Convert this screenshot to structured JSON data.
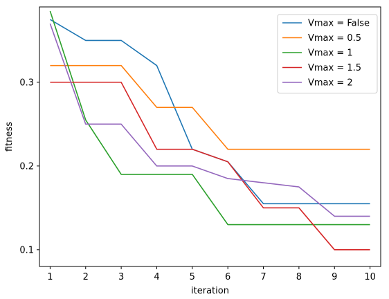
{
  "chart_data": {
    "type": "line",
    "title": "",
    "xlabel": "iteration",
    "ylabel": "fitness",
    "x": [
      1,
      2,
      3,
      4,
      5,
      6,
      7,
      8,
      9,
      10
    ],
    "xlim": [
      0.7,
      10.3
    ],
    "ylim": [
      0.08,
      0.39
    ],
    "xticks": [
      "1",
      "2",
      "3",
      "4",
      "5",
      "6",
      "7",
      "8",
      "9",
      "10"
    ],
    "yticks": [
      0.1,
      0.2,
      0.3
    ],
    "ytick_labels": [
      "0.1",
      "0.2",
      "0.3"
    ],
    "grid": false,
    "legend_position": "top-right",
    "series": [
      {
        "name": "Vmax = False",
        "color": "#1f77b4",
        "values": [
          0.375,
          0.35,
          0.35,
          0.32,
          0.22,
          0.205,
          0.155,
          0.155,
          0.155,
          0.155
        ]
      },
      {
        "name": "Vmax = 0.5",
        "color": "#ff7f0e",
        "values": [
          0.32,
          0.32,
          0.32,
          0.27,
          0.27,
          0.22,
          0.22,
          0.22,
          0.22,
          0.22
        ]
      },
      {
        "name": "Vmax = 1",
        "color": "#2ca02c",
        "values": [
          0.385,
          0.255,
          0.19,
          0.19,
          0.19,
          0.13,
          0.13,
          0.13,
          0.13,
          0.13
        ]
      },
      {
        "name": "Vmax = 1.5",
        "color": "#d62728",
        "values": [
          0.3,
          0.3,
          0.3,
          0.22,
          0.22,
          0.205,
          0.15,
          0.15,
          0.1,
          0.1
        ]
      },
      {
        "name": "Vmax = 2",
        "color": "#9467bd",
        "values": [
          0.37,
          0.25,
          0.25,
          0.2,
          0.2,
          0.185,
          0.18,
          0.175,
          0.14,
          0.14
        ]
      }
    ]
  }
}
